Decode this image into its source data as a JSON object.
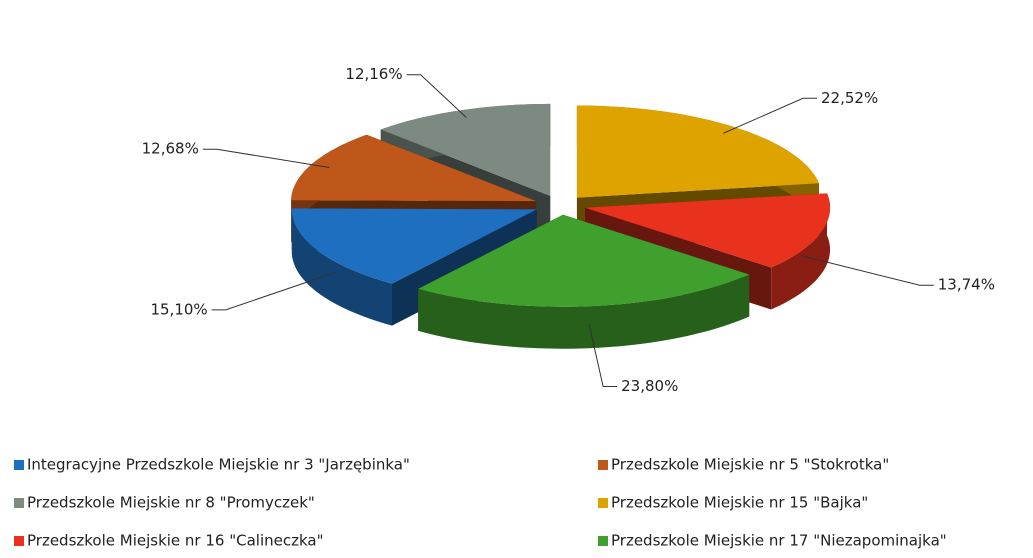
{
  "chart_data": {
    "type": "pie",
    "categories": [
      "Integracyjne Przedszkole Miejskie nr 3 \"Jarzębinka\"",
      "Przedszkole Miejskie nr 5 \"Stokrotka\"",
      "Przedszkole Miejskie nr 8 \"Promyczek\"",
      "Przedszkole Miejskie nr 15 \"Bajka\"",
      "Przedszkole Miejskie nr 16 \"Calineczka\"",
      "Przedszkole Miejskie nr 17 \"Niezapominajka\""
    ],
    "values": [
      15.1,
      12.68,
      12.16,
      22.52,
      13.74,
      23.8
    ],
    "value_labels": [
      "15,10%",
      "12,68%",
      "12,16%",
      "22,52%",
      "13,74%",
      "23,80%"
    ],
    "colors": [
      "#1f6fc0",
      "#c0571a",
      "#7d8a82",
      "#dfa300",
      "#e8321e",
      "#3fa02d"
    ]
  }
}
